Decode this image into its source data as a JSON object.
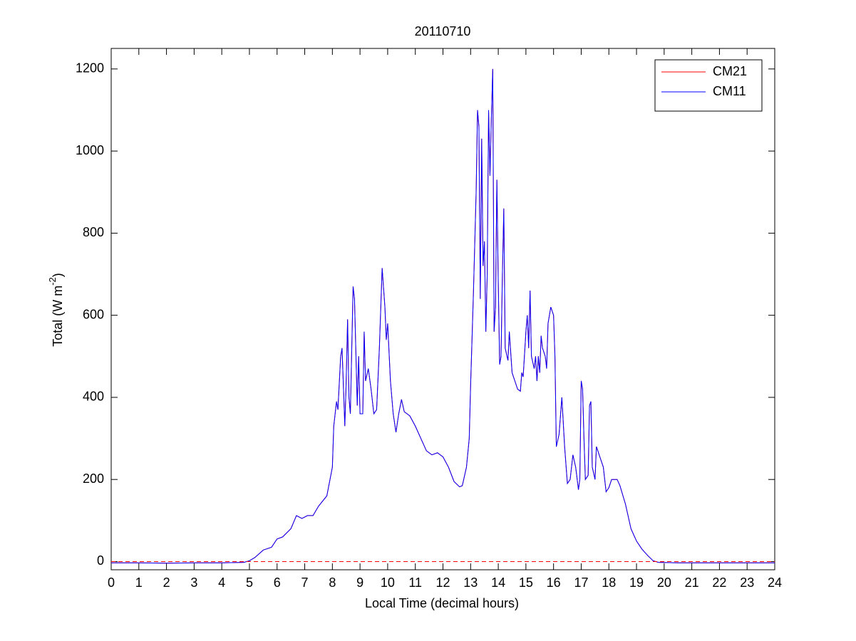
{
  "chart_data": {
    "type": "line",
    "title": "20110710",
    "x_label": "Local Time (decimal hours)",
    "y_label": [
      "Total (W m",
      "-2",
      ")"
    ],
    "xlim": [
      0,
      24
    ],
    "xticks": [
      0,
      1,
      2,
      3,
      4,
      5,
      6,
      7,
      8,
      9,
      10,
      11,
      12,
      13,
      14,
      15,
      16,
      17,
      18,
      19,
      20,
      21,
      22,
      23,
      24
    ],
    "ylim": [
      -20,
      1250
    ],
    "yticks": [
      0,
      200,
      400,
      600,
      800,
      1000,
      1200
    ],
    "legend": "northeast",
    "reference_line": {
      "y": 0,
      "color": "#ff0000",
      "dash": "dashed"
    },
    "x": [
      0,
      1,
      2,
      3,
      4,
      4.8,
      5.0,
      5.2,
      5.5,
      5.8,
      6.0,
      6.2,
      6.5,
      6.7,
      6.9,
      7.1,
      7.3,
      7.5,
      7.8,
      8.0,
      8.05,
      8.15,
      8.2,
      8.3,
      8.35,
      8.45,
      8.5,
      8.55,
      8.6,
      8.65,
      8.75,
      8.8,
      8.9,
      8.95,
      9.0,
      9.1,
      9.15,
      9.2,
      9.3,
      9.4,
      9.5,
      9.6,
      9.7,
      9.8,
      9.9,
      9.95,
      10.0,
      10.1,
      10.2,
      10.3,
      10.4,
      10.5,
      10.6,
      10.8,
      11.0,
      11.2,
      11.4,
      11.6,
      11.8,
      12.0,
      12.2,
      12.4,
      12.6,
      12.7,
      12.85,
      12.95,
      13.0,
      13.1,
      13.2,
      13.25,
      13.3,
      13.35,
      13.4,
      13.45,
      13.5,
      13.55,
      13.6,
      13.65,
      13.7,
      13.75,
      13.8,
      13.85,
      13.9,
      13.95,
      14.0,
      14.05,
      14.1,
      14.15,
      14.2,
      14.25,
      14.35,
      14.4,
      14.5,
      14.6,
      14.7,
      14.8,
      14.85,
      14.9,
      15.0,
      15.05,
      15.1,
      15.15,
      15.2,
      15.3,
      15.35,
      15.4,
      15.45,
      15.5,
      15.55,
      15.6,
      15.7,
      15.75,
      15.8,
      15.9,
      16.0,
      16.05,
      16.1,
      16.2,
      16.3,
      16.4,
      16.5,
      16.6,
      16.7,
      16.8,
      16.9,
      16.95,
      17.0,
      17.05,
      17.1,
      17.15,
      17.25,
      17.3,
      17.35,
      17.4,
      17.5,
      17.55,
      17.7,
      17.8,
      17.85,
      17.9,
      18.0,
      18.1,
      18.3,
      18.4,
      18.6,
      18.8,
      19.0,
      19.2,
      19.4,
      19.6,
      19.8,
      20.5,
      22,
      24
    ],
    "series": [
      {
        "name": "CM21",
        "color": "#ff0000",
        "values": [
          -3,
          -3,
          -4,
          -3,
          -3,
          -2,
          2,
          10,
          28,
          35,
          55,
          60,
          80,
          112,
          105,
          112,
          112,
          135,
          160,
          230,
          330,
          390,
          370,
          500,
          520,
          330,
          440,
          590,
          400,
          360,
          670,
          640,
          380,
          500,
          360,
          360,
          560,
          440,
          470,
          420,
          360,
          370,
          520,
          715,
          620,
          540,
          580,
          440,
          360,
          315,
          360,
          395,
          365,
          355,
          330,
          300,
          270,
          260,
          265,
          255,
          230,
          195,
          182,
          185,
          230,
          300,
          430,
          650,
          900,
          1100,
          1060,
          640,
          1030,
          720,
          780,
          560,
          700,
          1100,
          940,
          1080,
          1200,
          560,
          620,
          930,
          680,
          480,
          500,
          700,
          860,
          520,
          490,
          560,
          460,
          440,
          420,
          415,
          460,
          450,
          560,
          600,
          520,
          660,
          500,
          470,
          500,
          440,
          500,
          460,
          550,
          520,
          500,
          470,
          580,
          620,
          600,
          500,
          280,
          310,
          400,
          280,
          190,
          200,
          260,
          230,
          175,
          200,
          440,
          420,
          300,
          200,
          210,
          380,
          390,
          230,
          200,
          280,
          250,
          230,
          200,
          170,
          180,
          200,
          200,
          185,
          140,
          80,
          50,
          30,
          15,
          2,
          -2,
          -3,
          -3,
          -3
        ]
      },
      {
        "name": "CM11",
        "color": "#0000ff",
        "values": [
          -3,
          -3,
          -4,
          -3,
          -3,
          -2,
          2,
          10,
          28,
          35,
          55,
          60,
          80,
          112,
          105,
          112,
          112,
          135,
          160,
          230,
          330,
          390,
          370,
          500,
          520,
          330,
          440,
          590,
          400,
          360,
          670,
          640,
          380,
          500,
          360,
          360,
          560,
          440,
          470,
          420,
          360,
          370,
          520,
          715,
          620,
          540,
          580,
          440,
          360,
          315,
          360,
          395,
          365,
          355,
          330,
          300,
          270,
          260,
          265,
          255,
          230,
          195,
          182,
          185,
          230,
          300,
          430,
          650,
          900,
          1100,
          1060,
          640,
          1030,
          720,
          780,
          560,
          700,
          1100,
          940,
          1080,
          1200,
          560,
          620,
          930,
          680,
          480,
          500,
          700,
          860,
          520,
          490,
          560,
          460,
          440,
          420,
          415,
          460,
          450,
          560,
          600,
          520,
          660,
          500,
          470,
          500,
          440,
          500,
          460,
          550,
          520,
          500,
          470,
          580,
          620,
          600,
          500,
          280,
          310,
          400,
          280,
          190,
          200,
          260,
          230,
          175,
          200,
          440,
          420,
          300,
          200,
          210,
          380,
          390,
          230,
          200,
          280,
          250,
          230,
          200,
          170,
          180,
          200,
          200,
          185,
          140,
          80,
          50,
          30,
          15,
          2,
          -2,
          -3,
          -3,
          -3
        ]
      }
    ]
  }
}
